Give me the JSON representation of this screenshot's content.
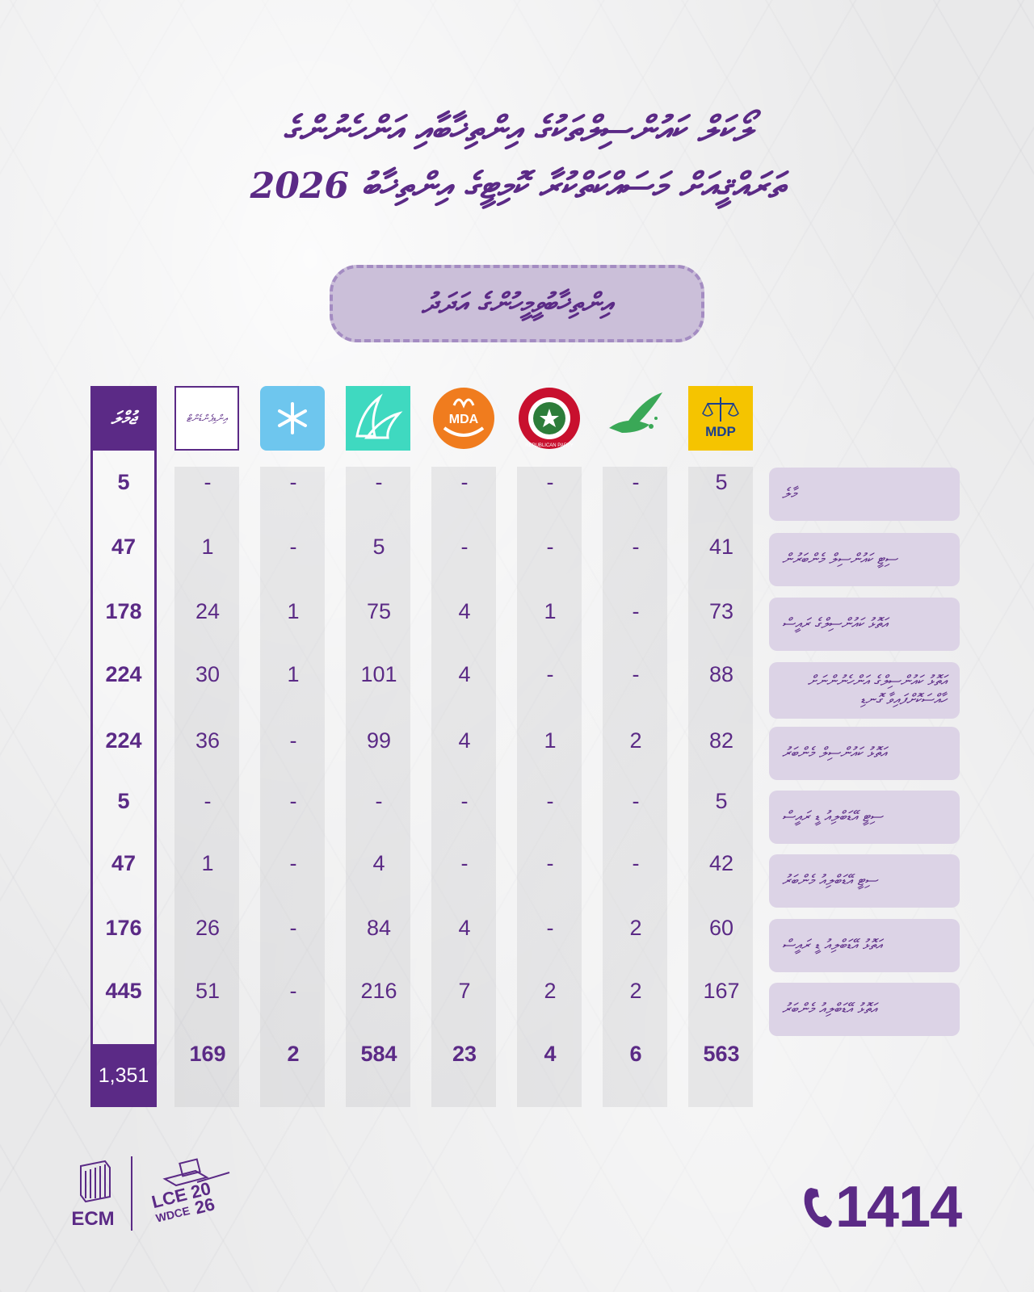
{
  "header": {
    "title_line1": "ލޯކަލް ކައުންސިލްތަކުގެ އިންތިޚާބާއި އަންހެނުންގެ",
    "title_line2": "ތަރައްޤީއަށް މަސައްކަތްކުރާ ކޮމިޓީގެ އިންތިޚާބު 2026",
    "subtitle": "އިންތިޚާބުވީމީހުންގެ އަދަދު"
  },
  "parties": [
    {
      "icon": "mdp-logo-icon",
      "label": "MDP",
      "color": "#f5c400"
    },
    {
      "icon": "dove-logo-icon",
      "label": "",
      "color": "#3aa857"
    },
    {
      "icon": "republican-party-logo-icon",
      "label": "REPUBLICAN PARTY",
      "color": "#c8102e"
    },
    {
      "icon": "mda-logo-icon",
      "label": "MDA",
      "color": "#f07c1e"
    },
    {
      "icon": "wings-logo-icon",
      "label": "",
      "color": "#3fd9c0"
    },
    {
      "icon": "asterisk-logo-icon",
      "label": "",
      "color": "#6ec6ee"
    },
    {
      "icon": "independent-icon",
      "label": "އިންޑިޕެންޑެންޓް",
      "color": "#5b2a86"
    }
  ],
  "total_header": "ޖުމްލަ",
  "rows": [
    {
      "label": "މާލެ",
      "values": [
        "5",
        "-",
        "-",
        "-",
        "-",
        "-",
        "-"
      ],
      "total": "5"
    },
    {
      "label": "ސިޓީ ކައުންސިލް މެންބަރުން",
      "values": [
        "41",
        "-",
        "-",
        "-",
        "5",
        "-",
        "1"
      ],
      "total": "47"
    },
    {
      "label": "އަތޮޅު ކައުންސިލްގެ ރައީސް",
      "values": [
        "73",
        "-",
        "1",
        "4",
        "75",
        "1",
        "24"
      ],
      "total": "178"
    },
    {
      "label": "އަތޮޅު ކައުންސިލްގެ އަންހެނުންނަށް ހާއްސަކޮށްފައިވާ ގޮނޑި",
      "values": [
        "88",
        "-",
        "-",
        "4",
        "101",
        "1",
        "30"
      ],
      "total": "224"
    },
    {
      "label": "އަތޮޅު ކައުންސިލް މެންބަރު",
      "values": [
        "82",
        "2",
        "1",
        "4",
        "99",
        "-",
        "36"
      ],
      "total": "224"
    },
    {
      "label": "ސިޓީ އޭޑަބްލިއު ޑީ ރައީސް",
      "values": [
        "5",
        "-",
        "-",
        "-",
        "-",
        "-",
        "-"
      ],
      "total": "5"
    },
    {
      "label": "ސިޓީ އޭޑަބްލިއު މެންބަރު",
      "values": [
        "42",
        "-",
        "-",
        "-",
        "4",
        "-",
        "1"
      ],
      "total": "47"
    },
    {
      "label": "އަތޮޅު އޭޑަބްލިއު ޑީ ރައީސް",
      "values": [
        "60",
        "2",
        "-",
        "4",
        "84",
        "-",
        "26"
      ],
      "total": "176"
    },
    {
      "label": "އަތޮޅު އޭޑަބްލިއު މެންބަރު",
      "values": [
        "167",
        "2",
        "2",
        "7",
        "216",
        "-",
        "51"
      ],
      "total": "445"
    }
  ],
  "totals": {
    "values": [
      "563",
      "6",
      "4",
      "23",
      "584",
      "2",
      "169"
    ],
    "grand": "1,351"
  },
  "footer": {
    "ecm": "ECM",
    "lce_top": "LCE",
    "lce_bottom": "WDCE",
    "year_a": "20",
    "year_b": "26",
    "hotline": "1414"
  }
}
